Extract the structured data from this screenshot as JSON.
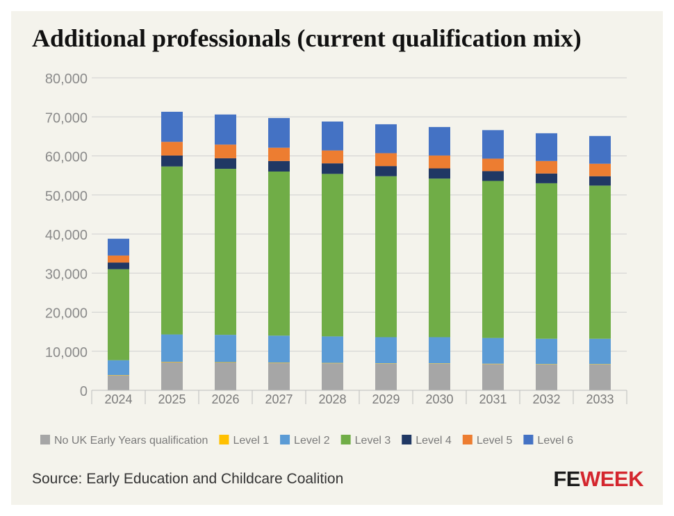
{
  "chart_data": {
    "type": "bar",
    "stacked": true,
    "title": "Additional professionals (current qualification mix)",
    "xlabel": "",
    "ylabel": "",
    "categories": [
      "2024",
      "2025",
      "2026",
      "2027",
      "2028",
      "2029",
      "2030",
      "2031",
      "2032",
      "2033"
    ],
    "ylim": [
      0,
      80000
    ],
    "yticks": [
      0,
      10000,
      20000,
      30000,
      40000,
      50000,
      60000,
      70000,
      80000
    ],
    "ytick_labels": [
      "0",
      "10,000",
      "20,000",
      "30,000",
      "40,000",
      "50,000",
      "60,000",
      "70,000",
      "80,000"
    ],
    "grid": true,
    "legend_position": "bottom",
    "series": [
      {
        "name": "No UK Early Years qualification",
        "color": "#a6a6a6",
        "values": [
          3800,
          7200,
          7100,
          7000,
          6900,
          6800,
          6800,
          6700,
          6600,
          6600
        ]
      },
      {
        "name": "Level 1",
        "color": "#ffc000",
        "values": [
          100,
          100,
          100,
          100,
          100,
          100,
          100,
          100,
          100,
          100
        ]
      },
      {
        "name": "Level 2",
        "color": "#5b9bd5",
        "values": [
          3800,
          7000,
          7000,
          6900,
          6800,
          6700,
          6700,
          6600,
          6500,
          6500
        ]
      },
      {
        "name": "Level 3",
        "color": "#70ad47",
        "values": [
          23300,
          43000,
          42500,
          42000,
          41600,
          41200,
          40600,
          40200,
          39800,
          39200
        ]
      },
      {
        "name": "Level 4",
        "color": "#203864",
        "values": [
          1700,
          2800,
          2700,
          2700,
          2700,
          2600,
          2600,
          2500,
          2500,
          2400
        ]
      },
      {
        "name": "Level 5",
        "color": "#ed7d31",
        "values": [
          1800,
          3500,
          3500,
          3400,
          3300,
          3300,
          3300,
          3200,
          3200,
          3200
        ]
      },
      {
        "name": "Level 6",
        "color": "#4472c4",
        "values": [
          4300,
          7700,
          7700,
          7600,
          7400,
          7400,
          7300,
          7300,
          7100,
          7100
        ]
      }
    ]
  },
  "source_text": "Source: Early Education and Childcare Coalition",
  "logo": {
    "part1": "FE",
    "part2": "WEEK"
  }
}
